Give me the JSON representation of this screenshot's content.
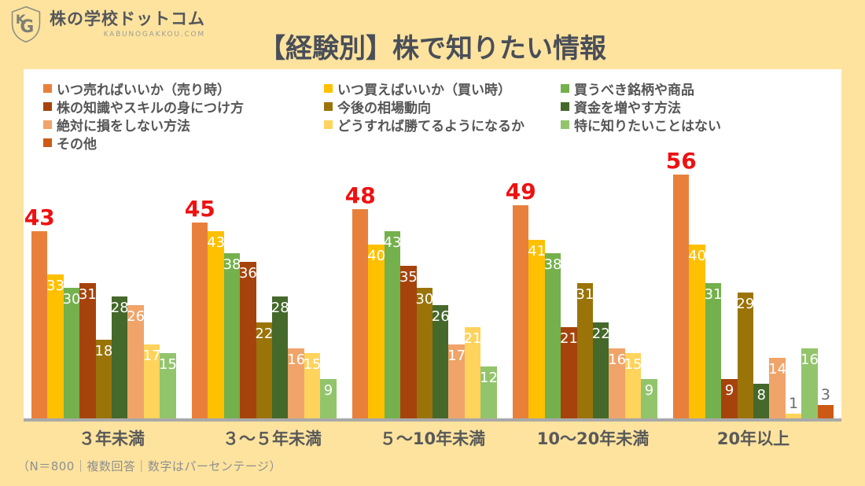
{
  "logo": {
    "title": "株の学校ドットコム",
    "subtitle": "KABUNOGAKKOU.COM",
    "monogram_k": "K",
    "monogram_g": "G"
  },
  "title": "【経験別】株で知りたい情報",
  "footnote": "（N＝800｜複数回答｜数字はパーセンテージ）",
  "colors": {
    "background": "#FDE39E",
    "panel": "#FFFFFF",
    "axis_line": "#A9A9A9",
    "title_text": "#494E58",
    "value_label_white": "#FFFFFF",
    "value_label_red": "#EE1111",
    "value_label_gray": "#6B6B6B"
  },
  "chart_data": {
    "type": "bar",
    "title": "【経験別】株で知りたい情報",
    "categories": [
      "３年未満",
      "３〜５年未満",
      "５〜10年未満",
      "10〜20年未満",
      "20年以上"
    ],
    "series": [
      {
        "name": "いつ売ればいいか（売り時）",
        "color": "#E8803C",
        "values": [
          43,
          45,
          48,
          49,
          56
        ]
      },
      {
        "name": "いつ買えばいいか（買い時）",
        "color": "#FFC000",
        "values": [
          33,
          43,
          40,
          41,
          40
        ]
      },
      {
        "name": "買うべき銘柄や商品",
        "color": "#74B04C",
        "values": [
          30,
          38,
          43,
          38,
          31
        ]
      },
      {
        "name": "株の知識やスキルの身につけ方",
        "color": "#A6430D",
        "values": [
          31,
          36,
          35,
          21,
          9
        ]
      },
      {
        "name": "今後の相場動向",
        "color": "#9A7408",
        "values": [
          18,
          22,
          30,
          31,
          29
        ]
      },
      {
        "name": "資金を増やす方法",
        "color": "#45682B",
        "values": [
          28,
          28,
          26,
          22,
          8
        ]
      },
      {
        "name": "絶対に損をしない方法",
        "color": "#F0A469",
        "values": [
          26,
          16,
          17,
          16,
          14
        ]
      },
      {
        "name": "どうすれば勝てるようになるか",
        "color": "#FFD35C",
        "values": [
          17,
          15,
          21,
          15,
          1
        ]
      },
      {
        "name": "特に知りたいことはない",
        "color": "#92C46C",
        "values": [
          15,
          9,
          12,
          9,
          16
        ]
      },
      {
        "name": "その他",
        "color": "#CC5A14",
        "values": [
          0,
          0,
          0,
          0,
          3
        ]
      }
    ],
    "legend_columns": [
      [
        0,
        3,
        6,
        9
      ],
      [
        1,
        4,
        7
      ],
      [
        2,
        5,
        8
      ]
    ],
    "ylim": [
      0,
      60
    ],
    "grid": false,
    "legend_position": "top",
    "value_labels": "shown on every bar; first series in red above bar, values ≤3 in gray above bar, others white inside bar top; numbers are percentages"
  }
}
